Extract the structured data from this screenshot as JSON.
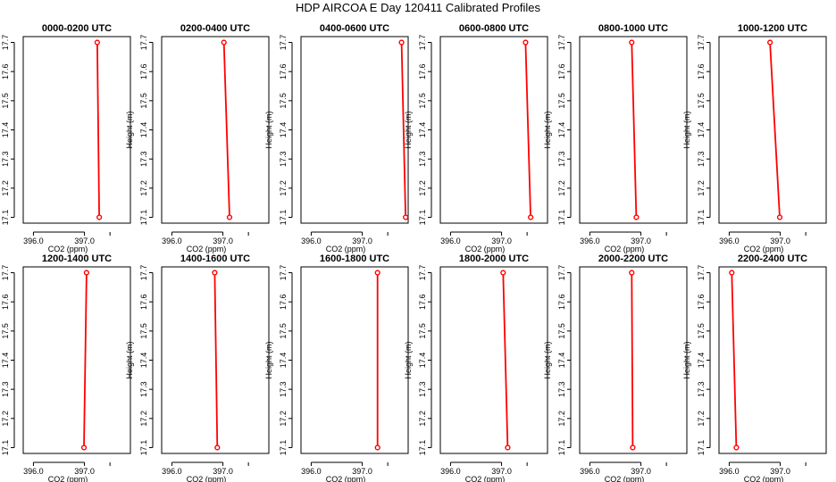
{
  "figure": {
    "title": "HDP AIRCOA E  Day 120411  Calibrated Profiles"
  },
  "style": {
    "series_color": "#ff0000",
    "axis_color": "#000000"
  },
  "chart_data": [
    {
      "type": "line",
      "title": "0000-0200 UTC",
      "xlabel": "CO2 (ppm)",
      "ylabel": "Height (m)",
      "xlim": [
        395.8,
        397.9
      ],
      "ylim": [
        17.08,
        17.72
      ],
      "xticks": [
        "396.0",
        "397.0"
      ],
      "yticks": [
        "17.1",
        "17.2",
        "17.3",
        "17.4",
        "17.5",
        "17.6",
        "17.7"
      ],
      "series": [
        {
          "x": [
            397.29,
            397.25
          ],
          "y": [
            17.1,
            17.7
          ]
        }
      ]
    },
    {
      "type": "line",
      "title": "0200-0400 UTC",
      "xlabel": "CO2 (ppm)",
      "ylabel": "Height (m)",
      "xlim": [
        395.8,
        397.9
      ],
      "ylim": [
        17.08,
        17.72
      ],
      "xticks": [
        "396.0",
        "397.0"
      ],
      "yticks": [
        "17.1",
        "17.2",
        "17.3",
        "17.4",
        "17.5",
        "17.6",
        "17.7"
      ],
      "series": [
        {
          "x": [
            397.13,
            397.02
          ],
          "y": [
            17.1,
            17.7
          ]
        }
      ]
    },
    {
      "type": "line",
      "title": "0400-0600 UTC",
      "xlabel": "CO2 (ppm)",
      "ylabel": "Height (m)",
      "xlim": [
        395.8,
        397.9
      ],
      "ylim": [
        17.08,
        17.72
      ],
      "xticks": [
        "396.0",
        "397.0"
      ],
      "yticks": [
        "17.1",
        "17.2",
        "17.3",
        "17.4",
        "17.5",
        "17.6",
        "17.7"
      ],
      "series": [
        {
          "x": [
            397.85,
            397.77
          ],
          "y": [
            17.1,
            17.7
          ]
        }
      ]
    },
    {
      "type": "line",
      "title": "0600-0800 UTC",
      "xlabel": "CO2 (ppm)",
      "ylabel": "Height (m)",
      "xlim": [
        395.8,
        397.9
      ],
      "ylim": [
        17.08,
        17.72
      ],
      "xticks": [
        "396.0",
        "397.0"
      ],
      "yticks": [
        "17.1",
        "17.2",
        "17.3",
        "17.4",
        "17.5",
        "17.6",
        "17.7"
      ],
      "series": [
        {
          "x": [
            397.57,
            397.47
          ],
          "y": [
            17.1,
            17.7
          ]
        }
      ]
    },
    {
      "type": "line",
      "title": "0800-1000 UTC",
      "xlabel": "CO2 (ppm)",
      "ylabel": "Height (m)",
      "xlim": [
        395.8,
        397.9
      ],
      "ylim": [
        17.08,
        17.72
      ],
      "xticks": [
        "396.0",
        "397.0"
      ],
      "yticks": [
        "17.1",
        "17.2",
        "17.3",
        "17.4",
        "17.5",
        "17.6",
        "17.7"
      ],
      "series": [
        {
          "x": [
            396.91,
            396.82
          ],
          "y": [
            17.1,
            17.7
          ]
        }
      ]
    },
    {
      "type": "line",
      "title": "1000-1200 UTC",
      "xlabel": "CO2 (ppm)",
      "ylabel": "Height (m)",
      "xlim": [
        395.8,
        397.9
      ],
      "ylim": [
        17.08,
        17.72
      ],
      "xticks": [
        "396.0",
        "397.0"
      ],
      "yticks": [
        "17.1",
        "17.2",
        "17.3",
        "17.4",
        "17.5",
        "17.6",
        "17.7"
      ],
      "series": [
        {
          "x": [
            396.99,
            396.8
          ],
          "y": [
            17.1,
            17.7
          ]
        }
      ]
    },
    {
      "type": "line",
      "title": "1200-1400 UTC",
      "xlabel": "CO2 (ppm)",
      "ylabel": "Height (m)",
      "xlim": [
        395.8,
        397.9
      ],
      "ylim": [
        17.08,
        17.72
      ],
      "xticks": [
        "396.0",
        "397.0"
      ],
      "yticks": [
        "17.1",
        "17.2",
        "17.3",
        "17.4",
        "17.5",
        "17.6",
        "17.7"
      ],
      "series": [
        {
          "x": [
            396.99,
            397.04
          ],
          "y": [
            17.1,
            17.7
          ]
        }
      ]
    },
    {
      "type": "line",
      "title": "1400-1600 UTC",
      "xlabel": "CO2 (ppm)",
      "ylabel": "Height (m)",
      "xlim": [
        395.8,
        397.9
      ],
      "ylim": [
        17.08,
        17.72
      ],
      "xticks": [
        "396.0",
        "397.0"
      ],
      "yticks": [
        "17.1",
        "17.2",
        "17.3",
        "17.4",
        "17.5",
        "17.6",
        "17.7"
      ],
      "series": [
        {
          "x": [
            396.89,
            396.84
          ],
          "y": [
            17.1,
            17.7
          ]
        }
      ]
    },
    {
      "type": "line",
      "title": "1600-1800 UTC",
      "xlabel": "CO2 (ppm)",
      "ylabel": "Height (m)",
      "xlim": [
        395.8,
        397.9
      ],
      "ylim": [
        17.08,
        17.72
      ],
      "xticks": [
        "396.0",
        "397.0"
      ],
      "yticks": [
        "17.1",
        "17.2",
        "17.3",
        "17.4",
        "17.5",
        "17.6",
        "17.7"
      ],
      "series": [
        {
          "x": [
            397.3,
            397.3
          ],
          "y": [
            17.1,
            17.7
          ]
        }
      ]
    },
    {
      "type": "line",
      "title": "1800-2000 UTC",
      "xlabel": "CO2 (ppm)",
      "ylabel": "Height (m)",
      "xlim": [
        395.8,
        397.9
      ],
      "ylim": [
        17.08,
        17.72
      ],
      "xticks": [
        "396.0",
        "397.0"
      ],
      "yticks": [
        "17.1",
        "17.2",
        "17.3",
        "17.4",
        "17.5",
        "17.6",
        "17.7"
      ],
      "series": [
        {
          "x": [
            397.12,
            397.03
          ],
          "y": [
            17.1,
            17.7
          ]
        }
      ]
    },
    {
      "type": "line",
      "title": "2000-2200 UTC",
      "xlabel": "CO2 (ppm)",
      "ylabel": "Height (m)",
      "xlim": [
        395.8,
        397.9
      ],
      "ylim": [
        17.08,
        17.72
      ],
      "xticks": [
        "396.0",
        "397.0"
      ],
      "yticks": [
        "17.1",
        "17.2",
        "17.3",
        "17.4",
        "17.5",
        "17.6",
        "17.7"
      ],
      "series": [
        {
          "x": [
            396.84,
            396.82
          ],
          "y": [
            17.1,
            17.7
          ]
        }
      ]
    },
    {
      "type": "line",
      "title": "2200-2400 UTC",
      "xlabel": "CO2 (ppm)",
      "ylabel": "Height (m)",
      "xlim": [
        395.8,
        397.9
      ],
      "ylim": [
        17.08,
        17.72
      ],
      "xticks": [
        "396.0",
        "397.0"
      ],
      "yticks": [
        "17.1",
        "17.2",
        "17.3",
        "17.4",
        "17.5",
        "17.6",
        "17.7"
      ],
      "series": [
        {
          "x": [
            396.14,
            396.05
          ],
          "y": [
            17.1,
            17.7
          ]
        }
      ]
    }
  ]
}
